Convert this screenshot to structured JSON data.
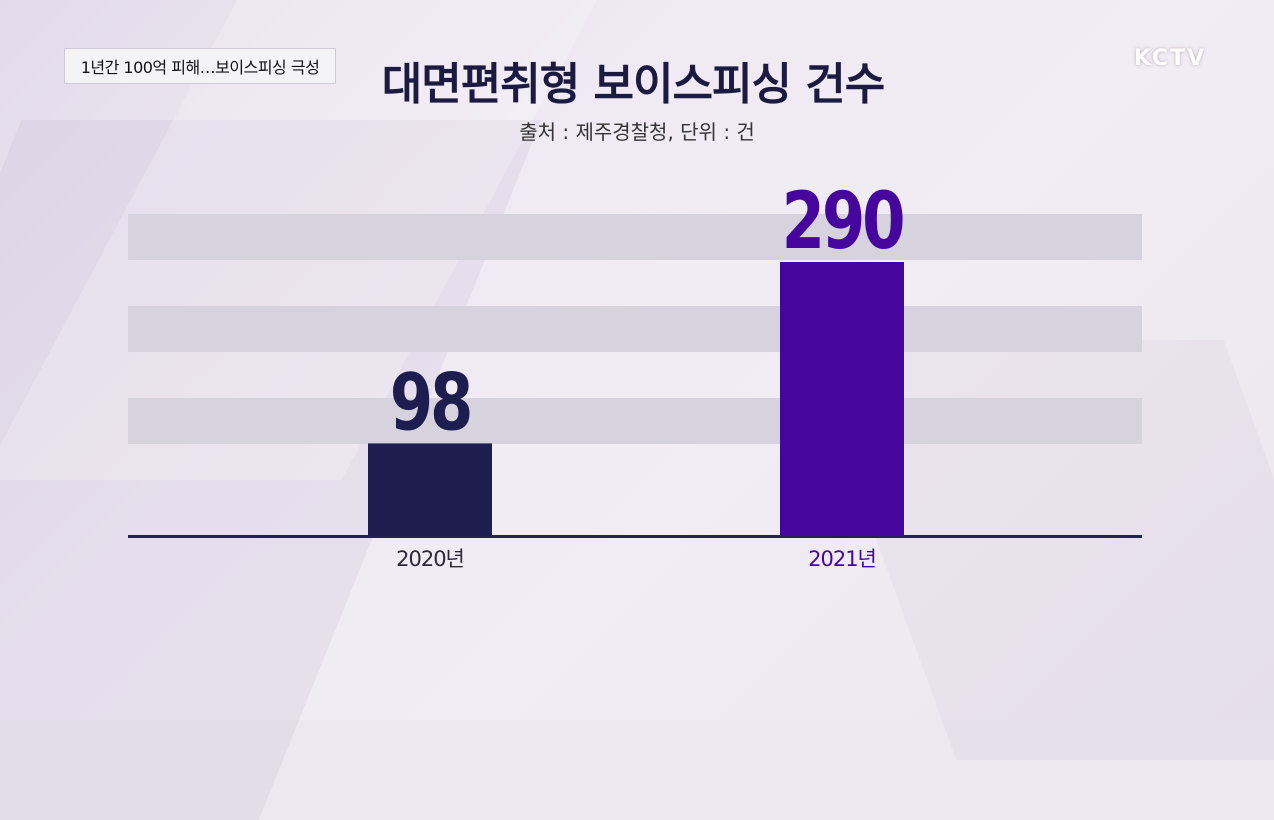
{
  "broadcast": {
    "ticker": "1년간 100억 피해…보이스피싱 극성",
    "logo": "KCTV"
  },
  "chart_data": {
    "type": "bar",
    "title": "대면편취형 보이스피싱 건수",
    "subtitle": "출처 : 제주경찰청, 단위 : 건",
    "categories": [
      "2020년",
      "2021년"
    ],
    "values": [
      98,
      290
    ],
    "value_labels": [
      "98",
      "290"
    ],
    "ylim": [
      0,
      300
    ],
    "grid": true,
    "colors": [
      "#1e1d4f",
      "#46069e"
    ],
    "label_colors": [
      "#1e1d4f",
      "#46069e"
    ],
    "band_color": "#d6d3de"
  }
}
